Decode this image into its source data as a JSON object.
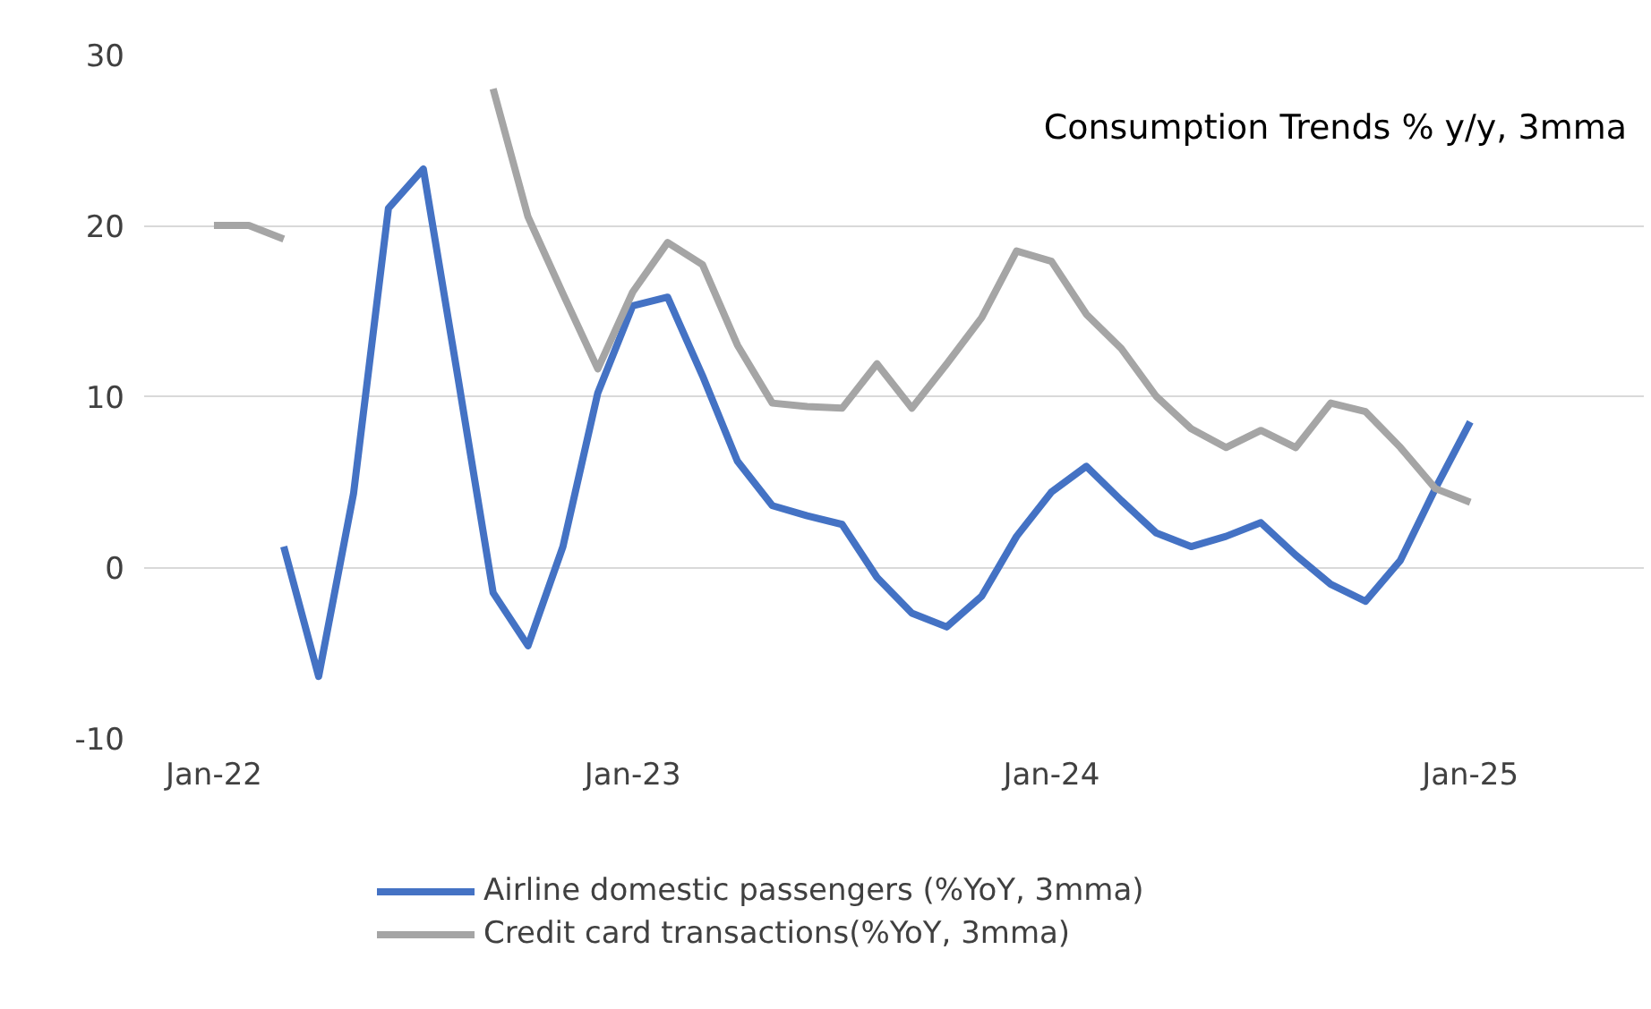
{
  "chart_data": {
    "type": "line",
    "title": "Consumption Trends % y/y, 3mma",
    "x": [
      "2022-01",
      "2022-02",
      "2022-03",
      "2022-04",
      "2022-05",
      "2022-06",
      "2022-07",
      "2022-08",
      "2022-09",
      "2022-10",
      "2022-11",
      "2022-12",
      "2023-01",
      "2023-02",
      "2023-03",
      "2023-04",
      "2023-05",
      "2023-06",
      "2023-07",
      "2023-08",
      "2023-09",
      "2023-10",
      "2023-11",
      "2023-12",
      "2024-01",
      "2024-02",
      "2024-03",
      "2024-04",
      "2024-05",
      "2024-06",
      "2024-07",
      "2024-08",
      "2024-09",
      "2024-10",
      "2024-11",
      "2024-12",
      "2025-01"
    ],
    "series": [
      {
        "name": "Airline domestic passengers (%YoY, 3mma)",
        "color": "#4472c4",
        "values": [
          null,
          null,
          1.2,
          -6.4,
          4.3,
          21,
          23.3,
          11,
          -1.5,
          -4.6,
          1.2,
          10.2,
          15.3,
          15.8,
          11.2,
          6.2,
          3.6,
          3.0,
          2.5,
          -0.6,
          -2.7,
          -3.5,
          -1.7,
          1.8,
          4.4,
          5.9,
          3.9,
          2.0,
          1.2,
          1.8,
          2.6,
          0.7,
          -1.0,
          -2.0,
          0.4,
          4.6,
          8.5
        ]
      },
      {
        "name": "Credit card transactions(%YoY, 3mma)",
        "color": "#a5a5a5",
        "values": [
          20,
          20,
          19.2,
          null,
          null,
          null,
          null,
          null,
          28,
          20.5,
          16,
          11.6,
          16.1,
          19,
          17.7,
          13,
          9.6,
          9.4,
          9.3,
          11.9,
          9.3,
          11.9,
          14.6,
          18.5,
          17.9,
          14.8,
          12.8,
          10,
          8.1,
          7.0,
          8.0,
          7.0,
          9.6,
          9.1,
          7.0,
          4.6,
          3.8
        ]
      }
    ],
    "xlim": [
      "2021-11",
      "2025-06"
    ],
    "xticks": [
      {
        "value": "2022-01",
        "label": "Jan-22"
      },
      {
        "value": "2023-01",
        "label": "Jan-23"
      },
      {
        "value": "2024-01",
        "label": "Jan-24"
      },
      {
        "value": "2025-01",
        "label": "Jan-25"
      }
    ],
    "ylim": [
      -10,
      30
    ],
    "yticks": [
      -10,
      0,
      10,
      20,
      30
    ],
    "grid": "y",
    "legend": "bottom",
    "marker": "none",
    "line_style": "solid"
  }
}
